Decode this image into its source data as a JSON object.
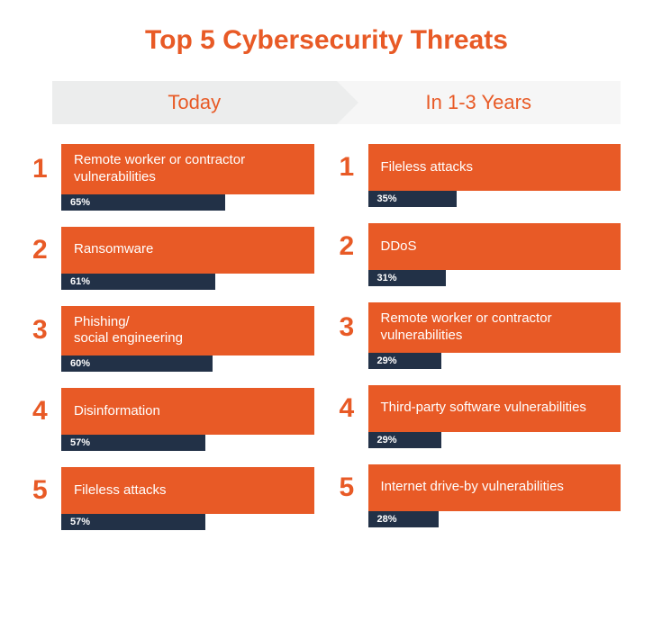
{
  "title": "Top 5 Cybersecurity Threats",
  "title_color": "#e85a26",
  "title_fontsize": 30,
  "tabs": {
    "left_label": "Today",
    "right_label": "In 1-3 Years",
    "left_bg": "#eceded",
    "right_bg": "#f6f6f6",
    "text_color": "#e85a26",
    "fontsize": 22
  },
  "colors": {
    "accent": "#e85a26",
    "bar_bg": "#223147",
    "white": "#ffffff"
  },
  "bar_max_pct": 100,
  "left_column": [
    {
      "rank": "1",
      "label": "Remote worker or contractor vulnerabilities",
      "pct": 65,
      "pct_label": "65%"
    },
    {
      "rank": "2",
      "label": "Ransomware",
      "pct": 61,
      "pct_label": "61%"
    },
    {
      "rank": "3",
      "label": "Phishing/\nsocial engineering",
      "pct": 60,
      "pct_label": "60%"
    },
    {
      "rank": "4",
      "label": "Disinformation",
      "pct": 57,
      "pct_label": "57%"
    },
    {
      "rank": "5",
      "label": "Fileless attacks",
      "pct": 57,
      "pct_label": "57%"
    }
  ],
  "right_column": [
    {
      "rank": "1",
      "label": "Fileless attacks",
      "pct": 35,
      "pct_label": "35%"
    },
    {
      "rank": "2",
      "label": "DDoS",
      "pct": 31,
      "pct_label": "31%"
    },
    {
      "rank": "3",
      "label": "Remote worker or contractor vulnerabilities",
      "pct": 29,
      "pct_label": "29%"
    },
    {
      "rank": "4",
      "label": "Third-party software vulnerabilities",
      "pct": 29,
      "pct_label": "29%"
    },
    {
      "rank": "5",
      "label": "Internet drive-by vulnerabilities",
      "pct": 28,
      "pct_label": "28%"
    }
  ]
}
